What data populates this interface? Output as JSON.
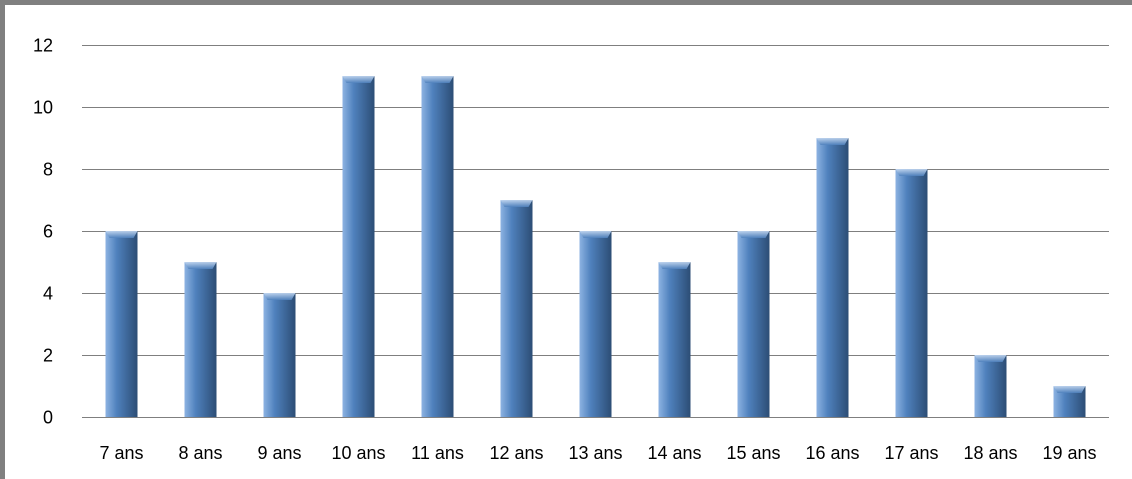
{
  "colors": {
    "frame": "#808080",
    "gridline": "#7f7f7f",
    "bar_light": "#8db3e2",
    "bar_mid": "#4f81bd",
    "bar_dark": "#2c4d75"
  },
  "chart_data": {
    "type": "bar",
    "title": "",
    "xlabel": "",
    "ylabel": "",
    "categories": [
      "7 ans",
      "8 ans",
      "9 ans",
      "10 ans",
      "11 ans",
      "12 ans",
      "13 ans",
      "14 ans",
      "15 ans",
      "16 ans",
      "17 ans",
      "18 ans",
      "19 ans"
    ],
    "values": [
      6,
      5,
      4,
      11,
      11,
      7,
      6,
      5,
      6,
      9,
      8,
      2,
      1
    ],
    "ylim": [
      0,
      12
    ],
    "yticks": [
      0,
      2,
      4,
      6,
      8,
      10,
      12
    ],
    "ytick_labels": [
      "0",
      "2",
      "4",
      "6",
      "8",
      "10",
      "12"
    ],
    "grid": true,
    "legend": "none"
  }
}
